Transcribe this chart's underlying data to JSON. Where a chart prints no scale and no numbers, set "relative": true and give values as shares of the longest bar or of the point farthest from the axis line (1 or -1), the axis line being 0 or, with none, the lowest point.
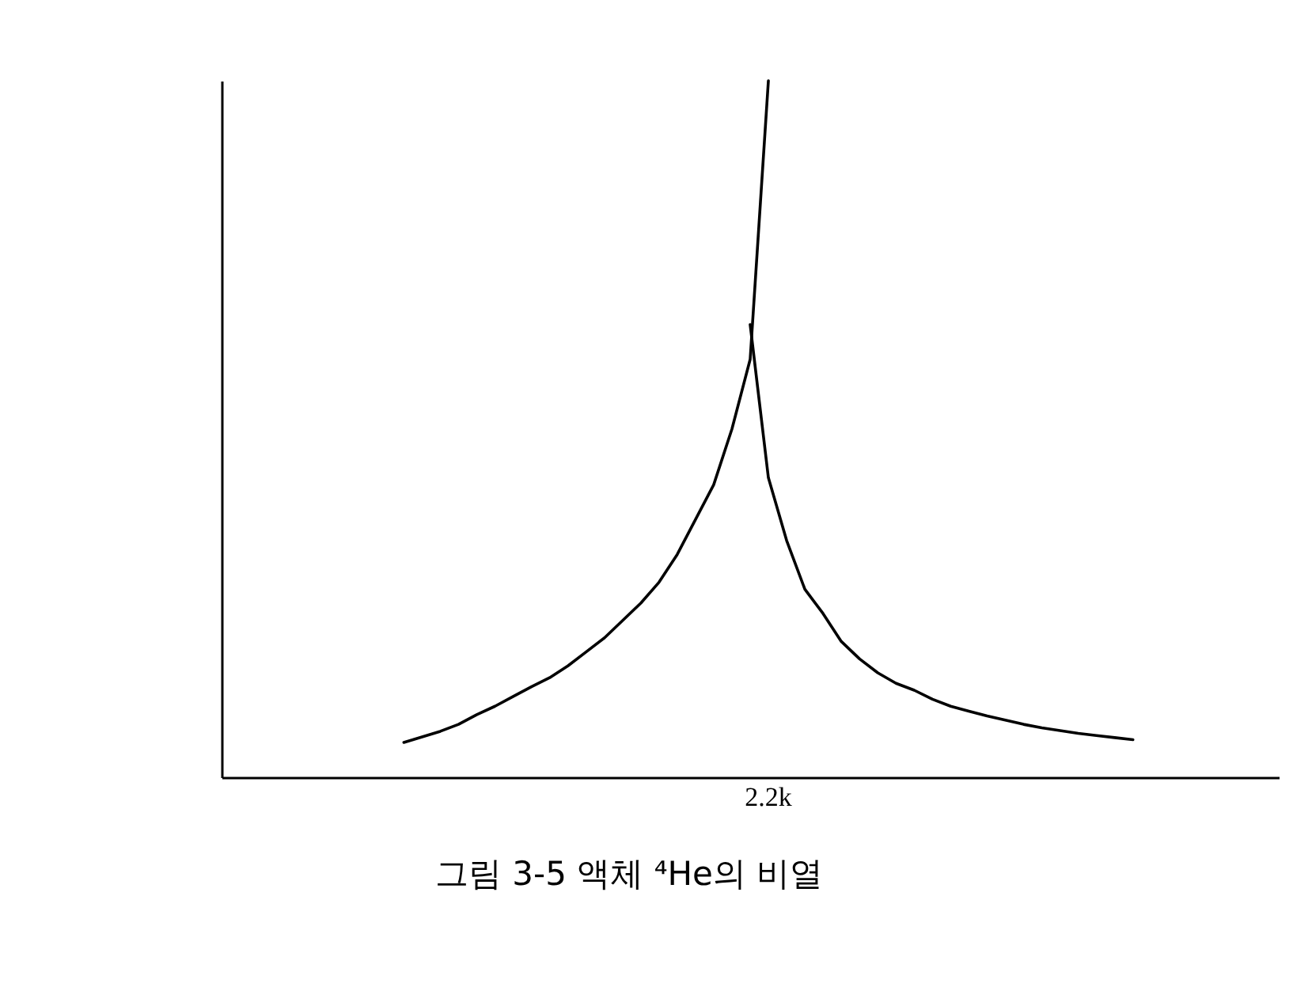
{
  "chart_data": {
    "type": "line",
    "title": "그림 3-5  액체 ⁴He의 비열",
    "relative": true,
    "annotations": [
      "2.2k"
    ],
    "marker": "none",
    "line_style": "solid",
    "categories": [
      null,
      null,
      null,
      null,
      null,
      null,
      null,
      null,
      null,
      null,
      null,
      null,
      null,
      null,
      null,
      null,
      null,
      null,
      null,
      null,
      null,
      null,
      null,
      null,
      null,
      null,
      null,
      null,
      null,
      null,
      null,
      null,
      null,
      null,
      null,
      null,
      null,
      null,
      null,
      null,
      null,
      null,
      null,
      null,
      null,
      null,
      null,
      null,
      null,
      null,
      null,
      null,
      null,
      null,
      null,
      null,
      null,
      null,
      null
    ],
    "series": [
      {
        "color": "#000000",
        "values": [
          null,
          null,
          null,
          null,
          null,
          null,
          null,
          null,
          null,
          null,
          0.05,
          0.058,
          0.066,
          0.076,
          0.09,
          0.102,
          0.116,
          0.13,
          0.143,
          0.16,
          0.18,
          0.2,
          0.225,
          0.25,
          0.28,
          0.32,
          0.37,
          0.42,
          0.5,
          0.6,
          1.0,
          null,
          null,
          null,
          null,
          null,
          null,
          null,
          null,
          null,
          null,
          null,
          null,
          null,
          null,
          null,
          null,
          null,
          null,
          null,
          null,
          null,
          null,
          null,
          null,
          null,
          null,
          null,
          null
        ]
      },
      {
        "color": "#000000",
        "values": [
          null,
          null,
          null,
          null,
          null,
          null,
          null,
          null,
          null,
          null,
          null,
          null,
          null,
          null,
          null,
          null,
          null,
          null,
          null,
          null,
          null,
          null,
          null,
          null,
          null,
          null,
          null,
          null,
          null,
          0.65,
          0.43,
          0.34,
          0.27,
          0.235,
          0.195,
          0.17,
          0.15,
          0.135,
          0.125,
          0.112,
          0.102,
          0.095,
          0.088,
          0.082,
          0.076,
          0.071,
          0.067,
          0.063,
          0.06,
          0.057,
          0.054,
          null,
          null,
          null,
          null,
          null,
          null,
          null,
          null
        ]
      }
    ]
  }
}
